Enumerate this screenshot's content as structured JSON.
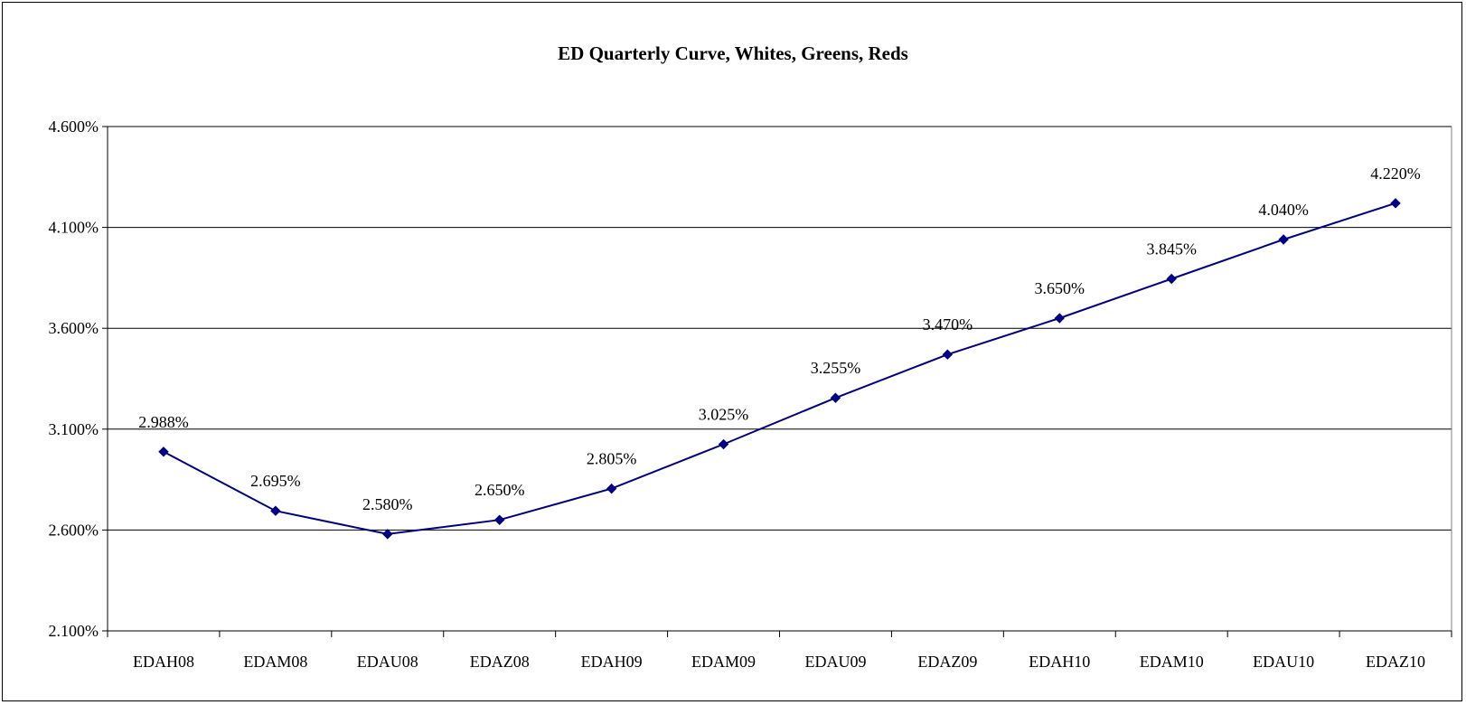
{
  "chart_data": {
    "type": "line",
    "title": "ED Quarterly Curve, Whites, Greens, Reds",
    "xlabel": "",
    "ylabel": "",
    "categories": [
      "EDAH08",
      "EDAM08",
      "EDAU08",
      "EDAZ08",
      "EDAH09",
      "EDAM09",
      "EDAU09",
      "EDAZ09",
      "EDAH10",
      "EDAM10",
      "EDAU10",
      "EDAZ10"
    ],
    "series": [
      {
        "values": [
          2.988,
          2.695,
          2.58,
          2.65,
          2.805,
          3.025,
          3.255,
          3.47,
          3.65,
          3.845,
          4.04,
          4.22
        ],
        "labels": [
          "2.988%",
          "2.695%",
          "2.580%",
          "2.650%",
          "2.805%",
          "3.025%",
          "3.255%",
          "3.470%",
          "3.650%",
          "3.845%",
          "4.040%",
          "4.220%"
        ],
        "color": "#000080"
      }
    ],
    "ylim": [
      2.1,
      4.6
    ],
    "yticks": [
      2.1,
      2.6,
      3.1,
      3.6,
      4.1,
      4.6
    ],
    "ytick_labels": [
      "2.100%",
      "2.600%",
      "3.100%",
      "3.600%",
      "4.100%",
      "4.600%"
    ],
    "grid": true,
    "legend": "none",
    "marker": "diamond"
  }
}
